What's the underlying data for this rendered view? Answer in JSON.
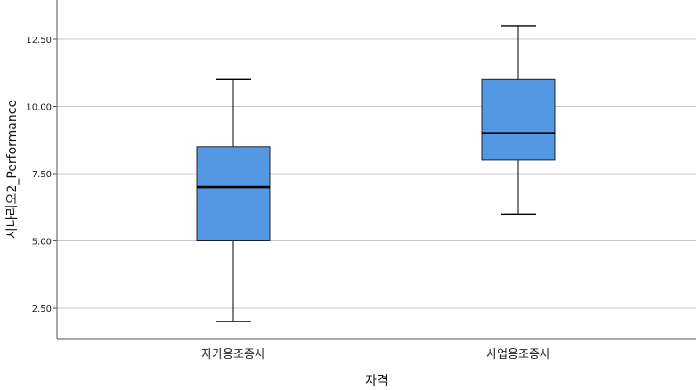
{
  "chart_data": {
    "type": "box",
    "xlabel": "자격",
    "ylabel": "시나리오2_Performance",
    "categories": [
      "자가용조종사",
      "사업용조종사"
    ],
    "boxes": [
      {
        "min": 2.0,
        "q1": 5.0,
        "median": 7.0,
        "q3": 8.5,
        "max": 11.0
      },
      {
        "min": 6.0,
        "q1": 8.0,
        "median": 9.0,
        "q3": 11.0,
        "max": 13.0
      }
    ],
    "yticks": [
      "2.50",
      "5.00",
      "7.50",
      "10.00",
      "12.50"
    ],
    "ylim": [
      1.5,
      14.0
    ],
    "grid": true,
    "box_color": "#5497e3"
  }
}
